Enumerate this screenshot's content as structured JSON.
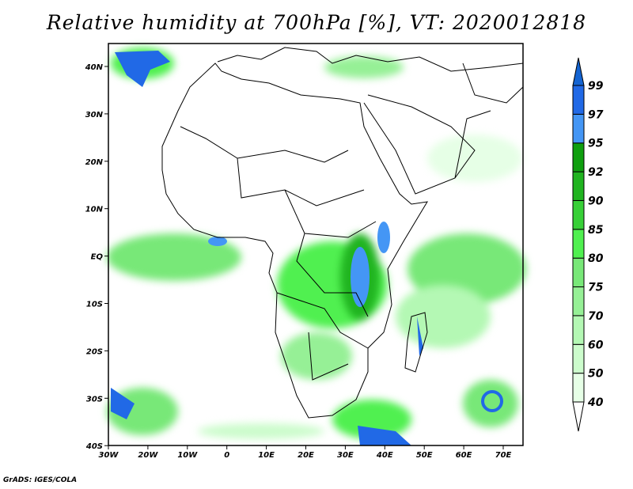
{
  "title": "Relative humidity at 700hPa [%], VT: 2020012818",
  "credit": "GrADS: IGES/COLA",
  "lat_labels": [
    "40N",
    "30N",
    "20N",
    "10N",
    "EQ",
    "10S",
    "20S",
    "30S",
    "40S"
  ],
  "lon_labels": [
    "30W",
    "20W",
    "10W",
    "0",
    "10E",
    "20E",
    "30E",
    "40E",
    "50E",
    "60E",
    "70E"
  ],
  "colorbar": {
    "levels": [
      "40",
      "50",
      "60",
      "70",
      "75",
      "80",
      "85",
      "90",
      "92",
      "95",
      "97",
      "99"
    ],
    "colors": [
      "#e6ffe6",
      "#ccfccc",
      "#b4f8b4",
      "#96f096",
      "#78e878",
      "#50f050",
      "#37d037",
      "#20b420",
      "#0f9f0f",
      "#4496f5",
      "#2169e6",
      "#1464d2"
    ]
  }
}
